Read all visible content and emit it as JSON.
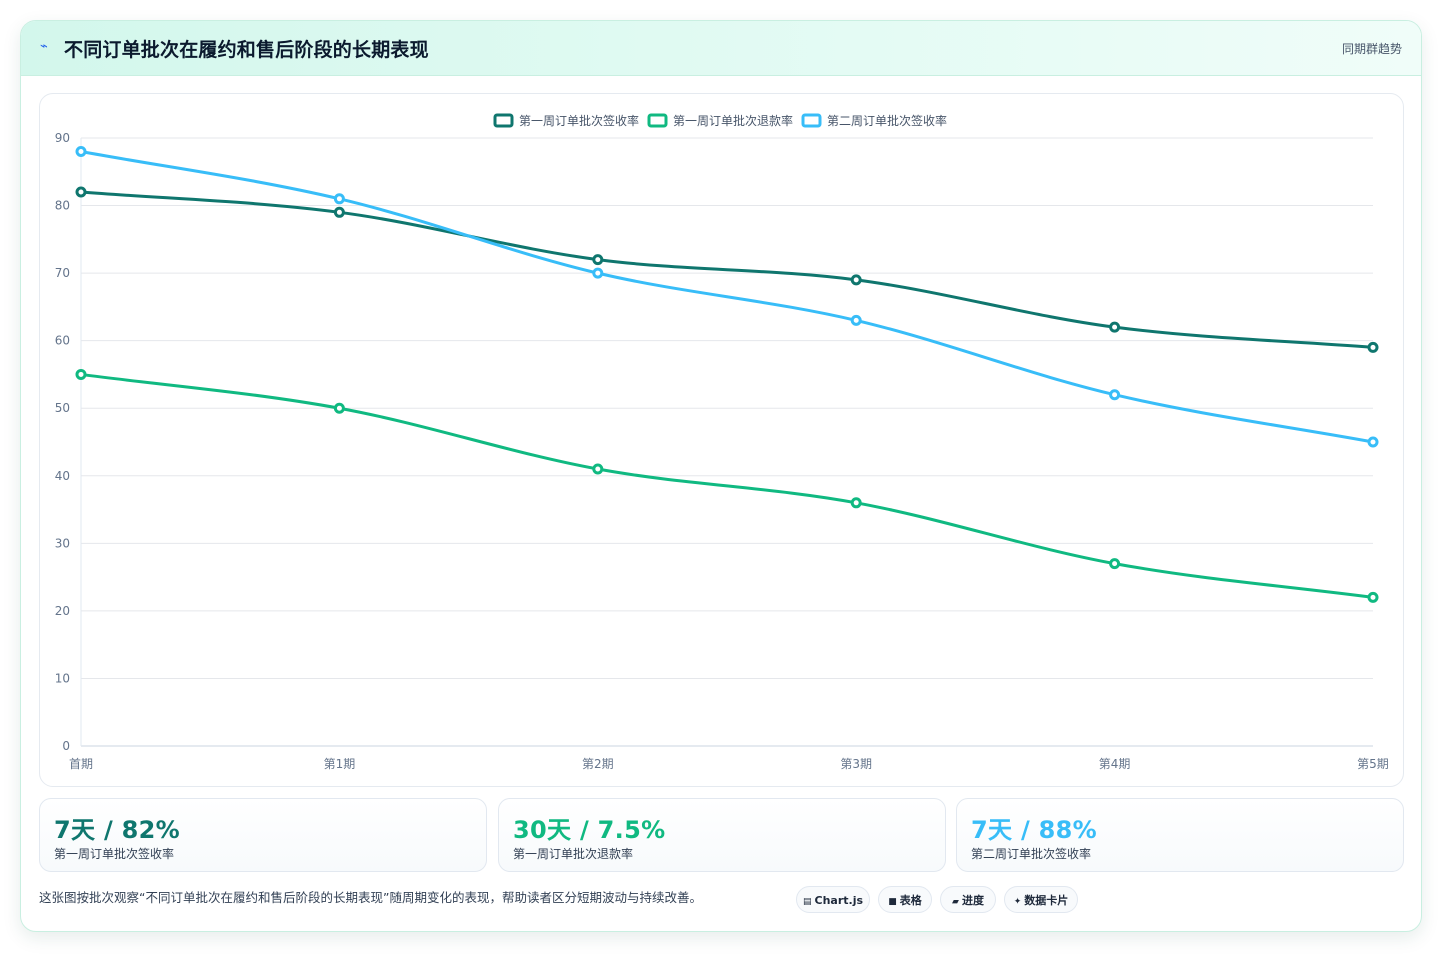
{
  "header": {
    "icon": "lightning-icon",
    "title": "不同订单批次在履约和售后阶段的长期表现",
    "right_label": "同期群趋势"
  },
  "colors": {
    "series1": "#0f766e",
    "series2": "#10b981",
    "series3": "#38bdf8",
    "grid": "#e5e7eb",
    "axis_text": "#64748b"
  },
  "chart_data": {
    "type": "line",
    "categories": [
      "首期",
      "第1期",
      "第2期",
      "第3期",
      "第4期",
      "第5期"
    ],
    "series": [
      {
        "name": "第一周订单批次签收率",
        "values": [
          82,
          79,
          72,
          69,
          62,
          59
        ],
        "color": "#0f766e"
      },
      {
        "name": "第一周订单批次退款率",
        "values": [
          55,
          50,
          41,
          36,
          27,
          22
        ],
        "color": "#10b981"
      },
      {
        "name": "第二周订单批次签收率",
        "values": [
          88,
          81,
          70,
          63,
          52,
          45
        ],
        "color": "#38bdf8"
      }
    ],
    "ylim": [
      0,
      90
    ],
    "yticks": [
      0,
      10,
      20,
      30,
      40,
      50,
      60,
      70,
      80,
      90
    ],
    "grid": true,
    "legend": "top-center",
    "smooth": true
  },
  "cards": [
    {
      "value": "7天 / 82%",
      "label": "第一周订单批次签收率",
      "color": "#0f766e"
    },
    {
      "value": "30天 / 7.5%",
      "label": "第一周订单批次退款率",
      "color": "#10b981"
    },
    {
      "value": "7天 / 88%",
      "label": "第二周订单批次签收率",
      "color": "#38bdf8"
    }
  ],
  "footer": {
    "note": "这张图按批次观察“不同订单批次在履约和售后阶段的长期表现”随周期变化的表现，帮助读者区分短期波动与持续改善。",
    "chips": [
      {
        "icon": "chart-icon",
        "glyph": "▤",
        "label": "Chart.js"
      },
      {
        "icon": "table-icon",
        "glyph": "■",
        "label": "表格"
      },
      {
        "icon": "progress-icon",
        "glyph": "▰",
        "label": "进度"
      },
      {
        "icon": "sparkle-icon",
        "glyph": "✦",
        "label": "数据卡片"
      }
    ]
  }
}
